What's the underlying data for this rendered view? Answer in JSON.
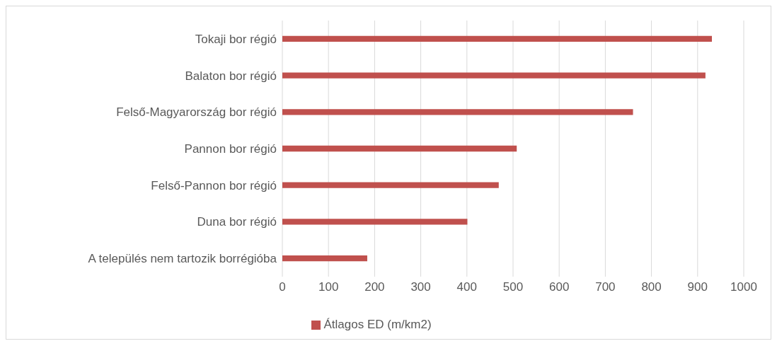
{
  "chart_data": {
    "type": "bar",
    "orientation": "horizontal",
    "categories": [
      "Tokaji bor régió",
      "Balaton bor régió",
      "Felső-Magyarország bor régió",
      "Pannon bor régió",
      "Felső-Pannon bor régió",
      "Duna bor régió",
      "A település nem tartozik borrégióba"
    ],
    "series": [
      {
        "name": "Átlagos ED (m/km2)",
        "color": "#c0504d",
        "values": [
          931,
          917,
          760,
          508,
          469,
          401,
          184
        ]
      }
    ],
    "xlim": [
      0,
      1000
    ],
    "xticks": [
      0,
      100,
      200,
      300,
      400,
      500,
      600,
      700,
      800,
      900,
      1000
    ],
    "grid": "x",
    "legend": "bottom"
  }
}
